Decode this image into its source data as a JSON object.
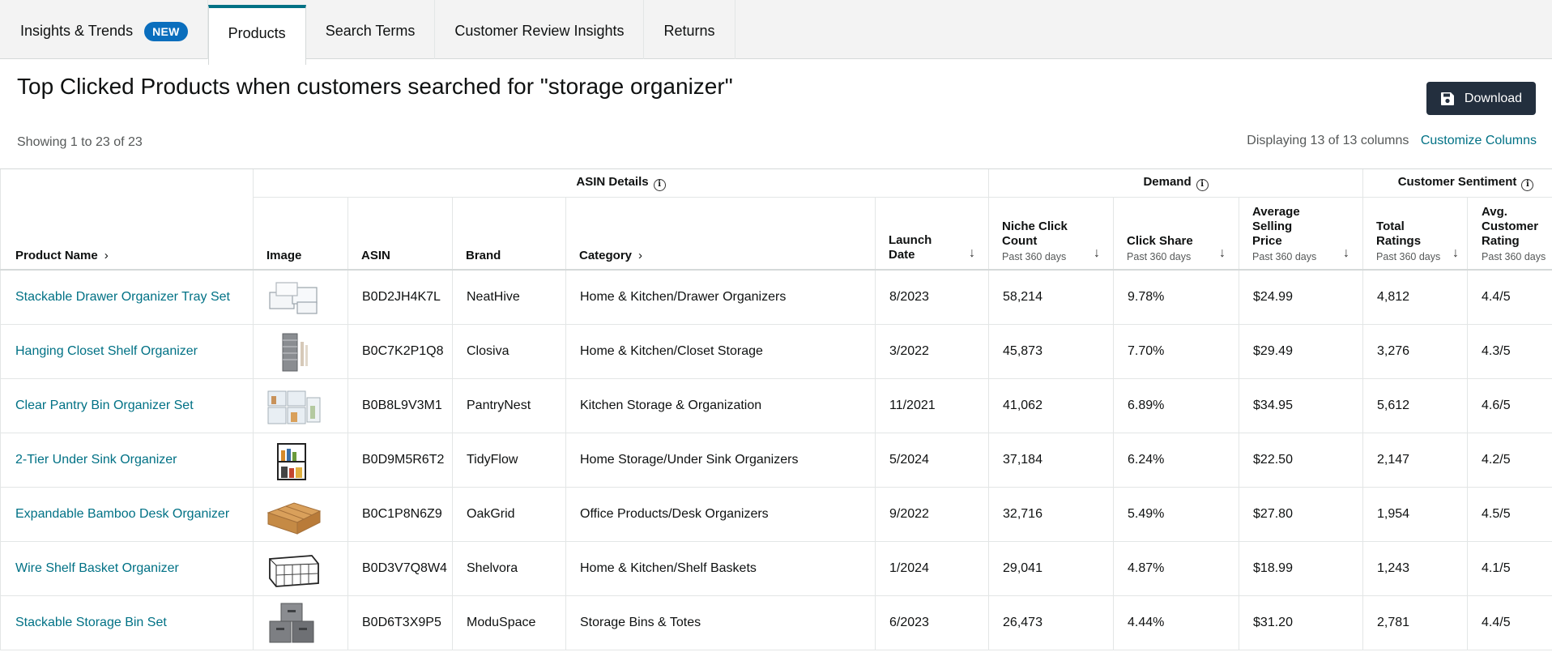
{
  "tabs": [
    {
      "label": "Insights & Trends",
      "badge": "NEW"
    },
    {
      "label": "Products"
    },
    {
      "label": "Search Terms"
    },
    {
      "label": "Customer Review Insights"
    },
    {
      "label": "Returns"
    }
  ],
  "active_tab": "Products",
  "header": {
    "title": "Top Clicked Products when customers searched for \"storage organizer\"",
    "download_label": "Download",
    "showing": "Showing 1 to 23 of 23",
    "displaying": "Displaying 13 of 13 columns",
    "customize": "Customize Columns"
  },
  "groups": {
    "asin_details": "ASIN Details",
    "demand": "Demand",
    "customer_sentiment": "Customer Sentiment"
  },
  "columns": {
    "product_name": "Product Name",
    "image": "Image",
    "asin": "ASIN",
    "brand": "Brand",
    "category": "Category",
    "launch_date": "Launch Date",
    "niche_click_count": "Niche Click Count",
    "click_share": "Click Share",
    "avg_selling_price": "Average Selling Price",
    "total_ratings": "Total Ratings",
    "avg_customer_rating": "Avg. Customer Rating",
    "period": "Past 360 days"
  },
  "rows": [
    {
      "name": "Stackable Drawer Organizer Tray Set",
      "image": "drawer-trays-icon",
      "asin": "B0D2JH4K7L",
      "brand": "NeatHive",
      "category": "Home & Kitchen/Drawer Organizers",
      "launch": "8/2023",
      "clicks": "58,214",
      "share": "9.78%",
      "price": "$24.99",
      "ratings": "4,812",
      "rating": "4.4/5"
    },
    {
      "name": "Hanging Closet Shelf Organizer",
      "image": "hanging-closet-icon",
      "asin": "B0C7K2P1Q8",
      "brand": "Closiva",
      "category": "Home & Kitchen/Closet Storage",
      "launch": "3/2022",
      "clicks": "45,873",
      "share": "7.70%",
      "price": "$29.49",
      "ratings": "3,276",
      "rating": "4.3/5"
    },
    {
      "name": "Clear Pantry Bin Organizer Set",
      "image": "pantry-bins-icon",
      "asin": "B0B8L9V3M1",
      "brand": "PantryNest",
      "category": "Kitchen Storage & Organization",
      "launch": "11/2021",
      "clicks": "41,062",
      "share": "6.89%",
      "price": "$34.95",
      "ratings": "5,612",
      "rating": "4.6/5"
    },
    {
      "name": "2-Tier Under Sink Organizer",
      "image": "under-sink-rack-icon",
      "asin": "B0D9M5R6T2",
      "brand": "TidyFlow",
      "category": "Home Storage/Under Sink Organizers",
      "launch": "5/2024",
      "clicks": "37,184",
      "share": "6.24%",
      "price": "$22.50",
      "ratings": "2,147",
      "rating": "4.2/5"
    },
    {
      "name": "Expandable Bamboo Desk Organizer",
      "image": "bamboo-organizer-icon",
      "asin": "B0C1P8N6Z9",
      "brand": "OakGrid",
      "category": "Office Products/Desk Organizers",
      "launch": "9/2022",
      "clicks": "32,716",
      "share": "5.49%",
      "price": "$27.80",
      "ratings": "1,954",
      "rating": "4.5/5"
    },
    {
      "name": "Wire Shelf Basket Organizer",
      "image": "wire-basket-icon",
      "asin": "B0D3V7Q8W4",
      "brand": "Shelvora",
      "category": "Home & Kitchen/Shelf Baskets",
      "launch": "1/2024",
      "clicks": "29,041",
      "share": "4.87%",
      "price": "$18.99",
      "ratings": "1,243",
      "rating": "4.1/5"
    },
    {
      "name": "Stackable Storage Bin Set",
      "image": "storage-bins-icon",
      "asin": "B0D6T3X9P5",
      "brand": "ModuSpace",
      "category": "Storage Bins & Totes",
      "launch": "6/2023",
      "clicks": "26,473",
      "share": "4.44%",
      "price": "$31.20",
      "ratings": "2,781",
      "rating": "4.4/5"
    }
  ]
}
